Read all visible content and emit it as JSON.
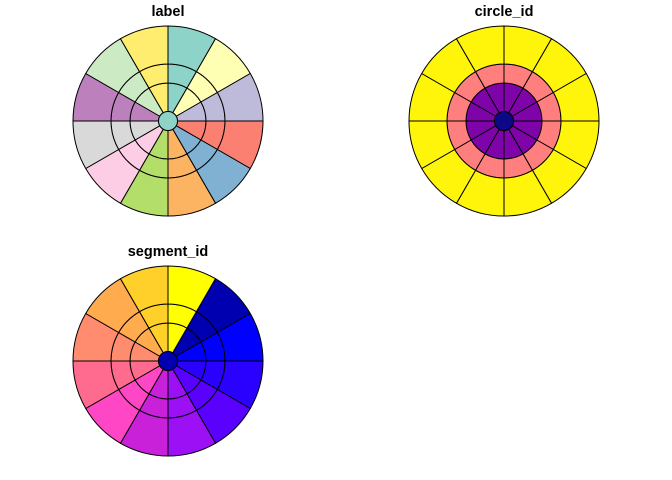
{
  "chart_data": [
    {
      "type": "polar-grid",
      "title": "label",
      "rings": 4,
      "segments": 12,
      "start_angle_deg": 0,
      "direction": "clockwise-from-top",
      "segment_colors": [
        "#8DD3C7",
        "#FFFFB3",
        "#BEBADA",
        "#FB8072",
        "#80B1D3",
        "#FDB462",
        "#B3DE69",
        "#FCCDE5",
        "#D9D9D9",
        "#BC80BD",
        "#CCEBC5",
        "#FFED6F"
      ],
      "center_color": "#8DD3C7"
    },
    {
      "type": "polar-grid",
      "title": "circle_id",
      "rings": 4,
      "segments": 12,
      "ring_colors": [
        "#0D0887",
        "#7E03A8",
        "#FF7F7F",
        "#FFF50A"
      ]
    },
    {
      "type": "polar-grid",
      "title": "segment_id",
      "rings": 4,
      "segments": 12,
      "segment_colors": [
        "#FFFF00",
        "#0000B0",
        "#0000FF",
        "#2A00FF",
        "#5A00FF",
        "#9C10F5",
        "#C821D9",
        "#FF46C4",
        "#FF6B8E",
        "#FF8C6E",
        "#FFAB4E",
        "#FFD02A"
      ],
      "center_color": "#0000B0"
    }
  ]
}
